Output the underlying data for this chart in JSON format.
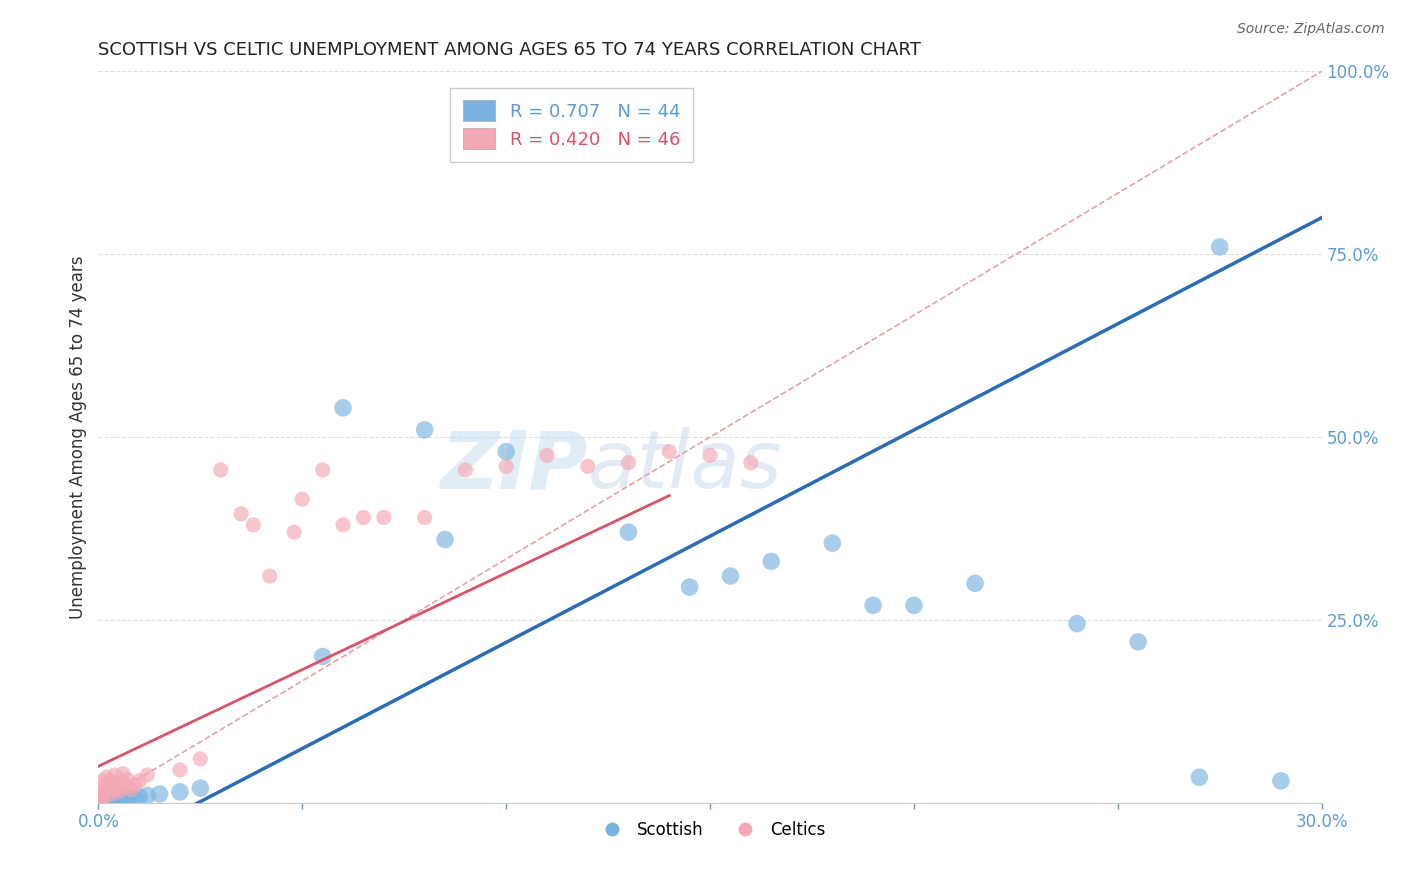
{
  "title": "SCOTTISH VS CELTIC UNEMPLOYMENT AMONG AGES 65 TO 74 YEARS CORRELATION CHART",
  "source": "Source: ZipAtlas.com",
  "ylabel": "Unemployment Among Ages 65 to 74 years",
  "xlim": [
    0.0,
    0.3
  ],
  "ylim": [
    0.0,
    1.0
  ],
  "xticks": [
    0.0,
    0.05,
    0.1,
    0.15,
    0.2,
    0.25,
    0.3
  ],
  "yticks": [
    0.0,
    0.25,
    0.5,
    0.75,
    1.0
  ],
  "legend_blue_label": "R = 0.707   N = 44",
  "legend_pink_label": "R = 0.420   N = 46",
  "legend_scottish": "Scottish",
  "legend_celtics": "Celtics",
  "blue_color": "#7ab3e0",
  "pink_color": "#f4a7b4",
  "blue_line_color": "#2b6cb8",
  "pink_line_color": "#d9536a",
  "diag_color": "#cccccc",
  "watermark_zip": "ZIP",
  "watermark_atlas": "atlas",
  "scottish_x": [
    0.001,
    0.001,
    0.001,
    0.001,
    0.002,
    0.002,
    0.002,
    0.002,
    0.002,
    0.003,
    0.003,
    0.003,
    0.004,
    0.004,
    0.005,
    0.005,
    0.006,
    0.006,
    0.007,
    0.008,
    0.009,
    0.01,
    0.012,
    0.015,
    0.02,
    0.025,
    0.055,
    0.06,
    0.08,
    0.085,
    0.1,
    0.13,
    0.145,
    0.155,
    0.165,
    0.18,
    0.19,
    0.2,
    0.215,
    0.24,
    0.255,
    0.27,
    0.275,
    0.29
  ],
  "scottish_y": [
    0.005,
    0.008,
    0.003,
    0.01,
    0.004,
    0.007,
    0.005,
    0.009,
    0.006,
    0.005,
    0.008,
    0.003,
    0.006,
    0.009,
    0.004,
    0.007,
    0.005,
    0.008,
    0.006,
    0.007,
    0.005,
    0.008,
    0.01,
    0.012,
    0.015,
    0.02,
    0.2,
    0.54,
    0.51,
    0.36,
    0.48,
    0.37,
    0.295,
    0.31,
    0.33,
    0.355,
    0.27,
    0.27,
    0.3,
    0.245,
    0.22,
    0.035,
    0.76,
    0.03
  ],
  "celtic_x": [
    0.001,
    0.001,
    0.001,
    0.001,
    0.001,
    0.002,
    0.002,
    0.002,
    0.002,
    0.003,
    0.003,
    0.003,
    0.004,
    0.004,
    0.004,
    0.005,
    0.005,
    0.006,
    0.006,
    0.007,
    0.007,
    0.008,
    0.009,
    0.01,
    0.012,
    0.02,
    0.025,
    0.03,
    0.035,
    0.038,
    0.042,
    0.048,
    0.05,
    0.055,
    0.06,
    0.065,
    0.07,
    0.08,
    0.09,
    0.1,
    0.11,
    0.12,
    0.13,
    0.14,
    0.15,
    0.16
  ],
  "celtic_y": [
    0.005,
    0.01,
    0.02,
    0.03,
    0.008,
    0.015,
    0.025,
    0.018,
    0.035,
    0.02,
    0.012,
    0.03,
    0.018,
    0.025,
    0.038,
    0.022,
    0.015,
    0.028,
    0.04,
    0.022,
    0.032,
    0.018,
    0.025,
    0.03,
    0.038,
    0.045,
    0.06,
    0.455,
    0.395,
    0.38,
    0.31,
    0.37,
    0.415,
    0.455,
    0.38,
    0.39,
    0.39,
    0.39,
    0.455,
    0.46,
    0.475,
    0.46,
    0.465,
    0.48,
    0.475,
    0.465
  ],
  "blue_line_x": [
    -0.01,
    0.3
  ],
  "blue_line_y": [
    -0.1,
    0.8
  ],
  "pink_line_x": [
    0.0,
    0.14
  ],
  "pink_line_y": [
    0.05,
    0.42
  ]
}
